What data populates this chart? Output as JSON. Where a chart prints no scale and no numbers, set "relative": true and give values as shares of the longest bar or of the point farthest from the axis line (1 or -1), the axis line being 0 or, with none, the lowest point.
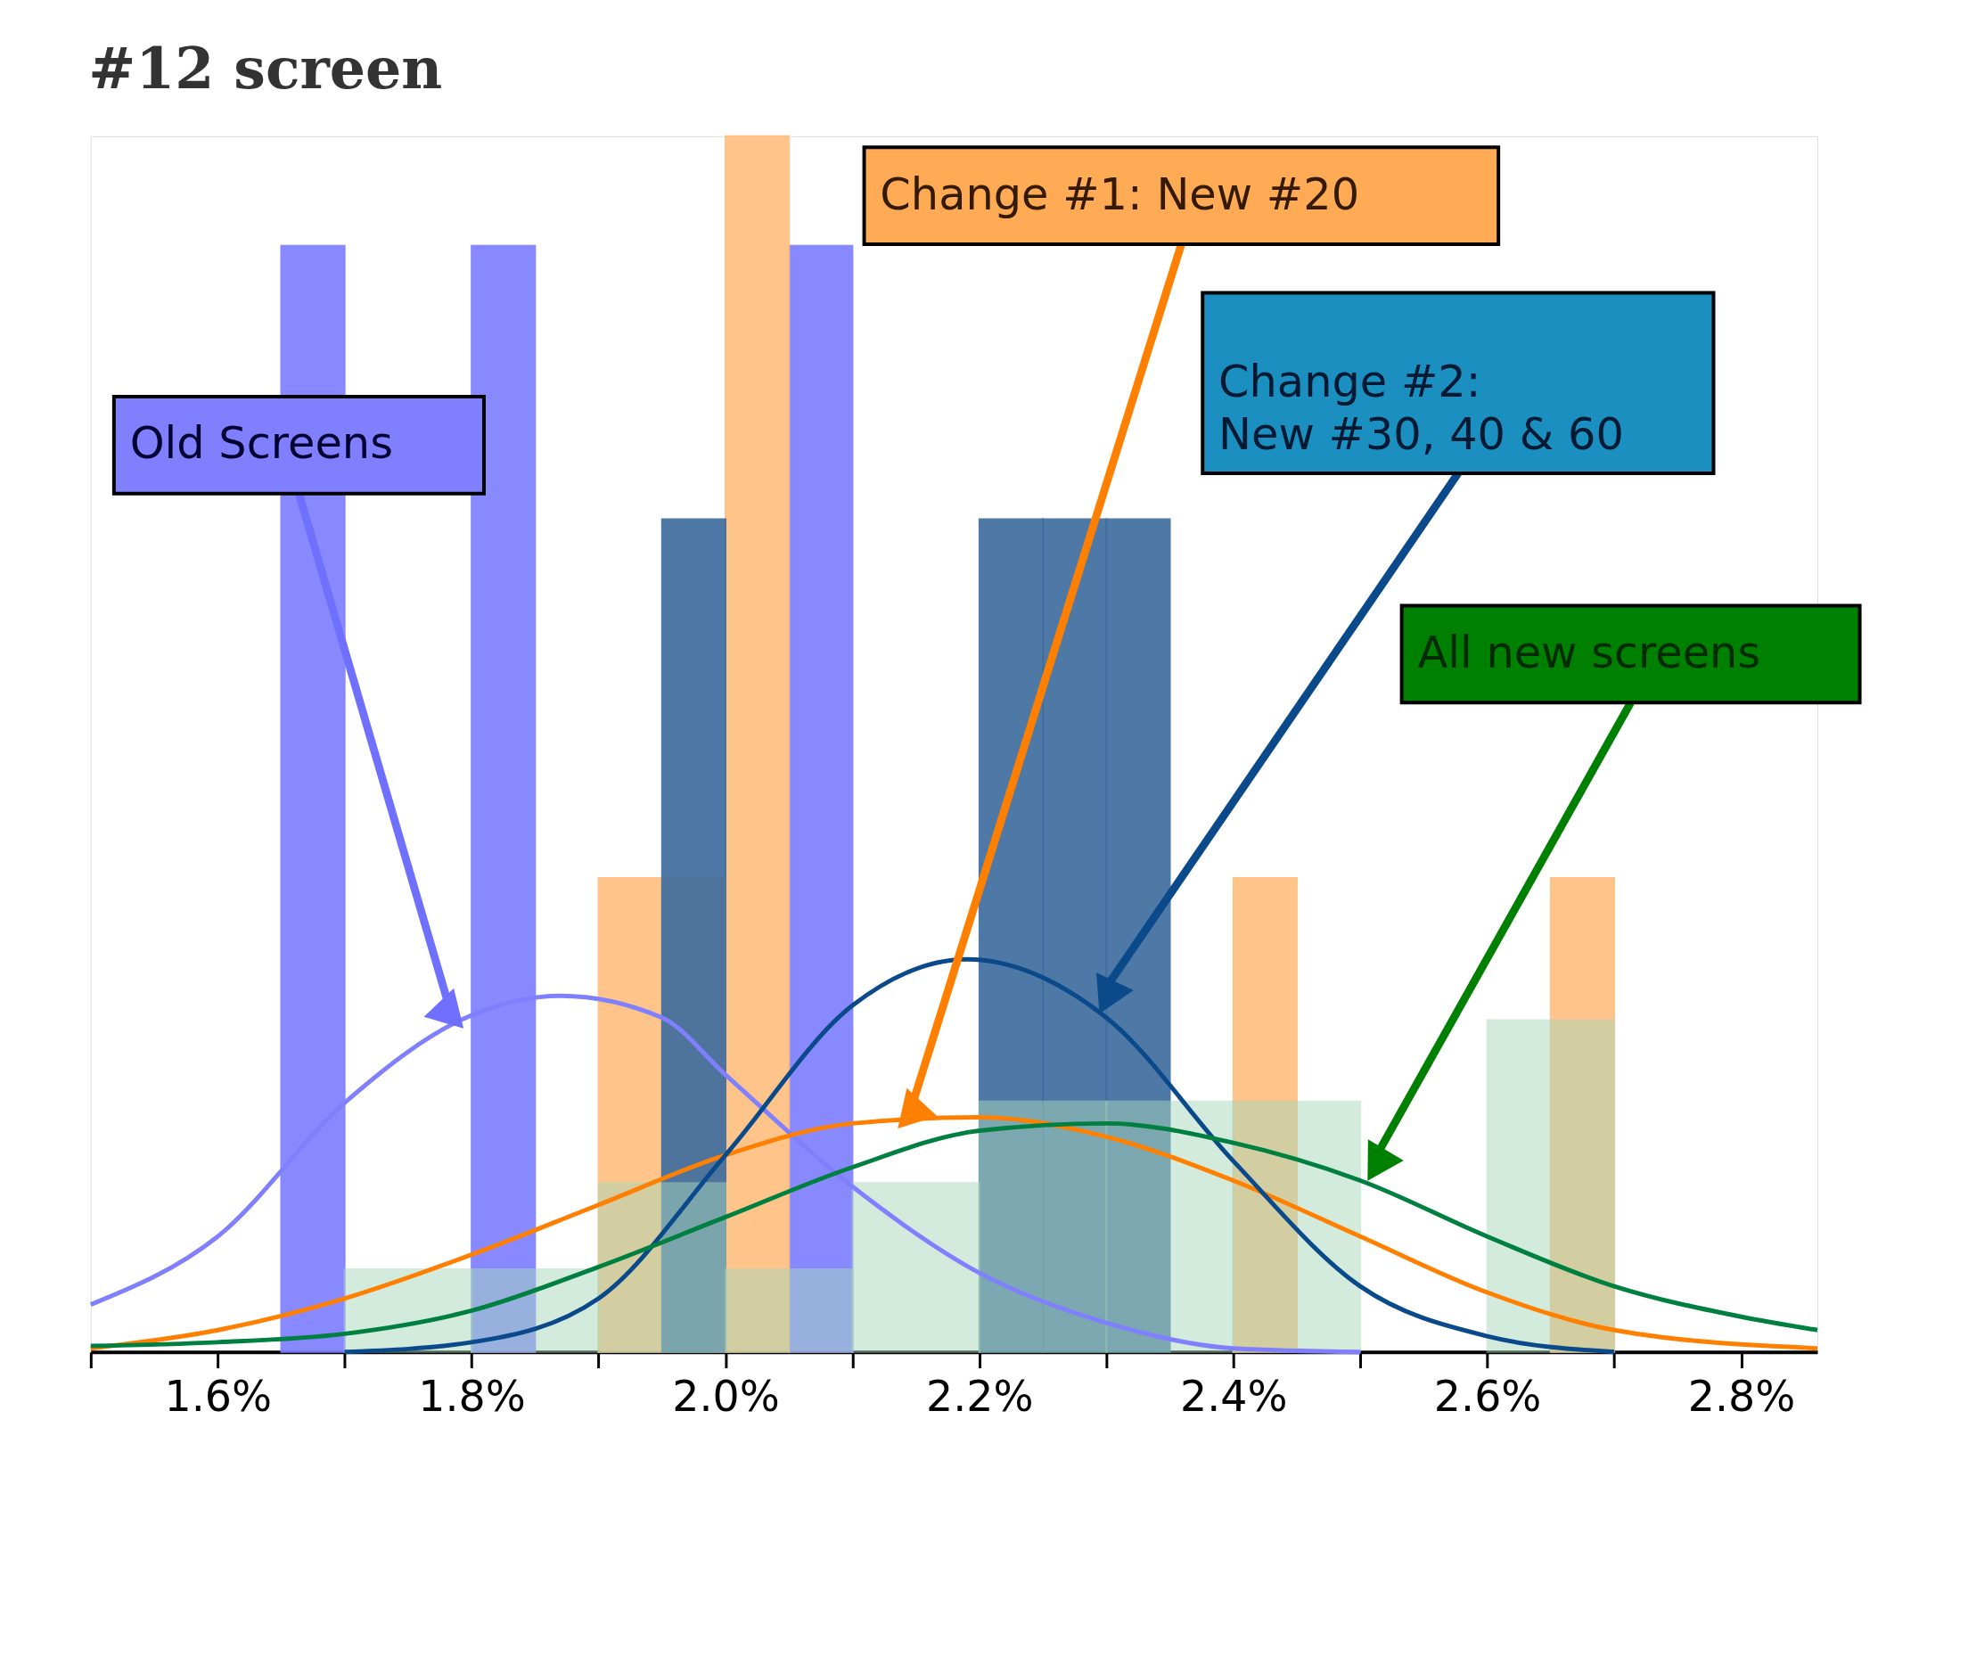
{
  "chart_data": {
    "type": "histogram",
    "title": "#12 screen",
    "relative": true,
    "grid": false,
    "marker": "none",
    "xlim": [
      1.5,
      2.86
    ],
    "xticks": [
      {
        "value": 1.6,
        "label": "1.6%"
      },
      {
        "value": 1.8,
        "label": "1.8%"
      },
      {
        "value": 2.0,
        "label": "2.0%"
      },
      {
        "value": 2.2,
        "label": "2.2%"
      },
      {
        "value": 2.4,
        "label": "2.4%"
      },
      {
        "value": 2.6,
        "label": "2.6%"
      },
      {
        "value": 2.8,
        "label": "2.8%"
      }
    ],
    "series": [
      {
        "color": "#8080ff",
        "bins": [
          1.65,
          1.7,
          1.8,
          1.85,
          2.05,
          2.1
        ],
        "values": [
          0.91,
          0,
          0.91,
          0,
          0.91
        ]
      },
      {
        "color": "#ffbf80",
        "bins": [
          1.9,
          2.0,
          2.05,
          2.4,
          2.45,
          2.65,
          2.7
        ],
        "values": [
          0.39,
          1,
          0,
          0.39,
          0,
          0.39
        ]
      },
      {
        "color": "#3f6d9f",
        "bins": [
          1.95,
          2.0,
          2.2,
          2.25,
          2.3,
          2.35
        ],
        "values": [
          0.685,
          0,
          0.685,
          0.685,
          0.685
        ]
      },
      {
        "color": "#a8d8bc",
        "bins": [
          1.7,
          1.8,
          1.9,
          2.0,
          2.1,
          2.2,
          2.3,
          2.4,
          2.5,
          2.6,
          2.7
        ],
        "values": [
          0.068,
          0.068,
          0.139,
          0.068,
          0.139,
          0.206,
          0.206,
          0.206,
          0,
          0.273
        ]
      },
      {
        "type": "line",
        "color": "#8080ff",
        "x": [
          1.5,
          1.6,
          1.7,
          1.8,
          1.87,
          1.95,
          2.0,
          2.1,
          2.2,
          2.3,
          2.4,
          2.5
        ],
        "values": [
          0.039,
          0.095,
          0.205,
          0.277,
          0.293,
          0.275,
          0.228,
          0.136,
          0.065,
          0.024,
          0.003,
          0
        ]
      },
      {
        "type": "line",
        "color": "#ff8000",
        "x": [
          1.5,
          1.6,
          1.7,
          1.8,
          1.9,
          2.0,
          2.1,
          2.2,
          2.3,
          2.4,
          2.5,
          2.6,
          2.7,
          2.86
        ],
        "values": [
          0.003,
          0.018,
          0.044,
          0.08,
          0.121,
          0.162,
          0.188,
          0.193,
          0.177,
          0.141,
          0.095,
          0.049,
          0.018,
          0.003
        ]
      },
      {
        "type": "line",
        "color": "#0a4a8a",
        "x": [
          1.7,
          1.8,
          1.9,
          2.0,
          2.1,
          2.19,
          2.3,
          2.4,
          2.5,
          2.6,
          2.7
        ],
        "values": [
          0,
          0.008,
          0.044,
          0.162,
          0.285,
          0.323,
          0.275,
          0.157,
          0.054,
          0.013,
          0
        ]
      },
      {
        "type": "line",
        "color": "#008040",
        "x": [
          1.5,
          1.6,
          1.7,
          1.8,
          1.9,
          2.0,
          2.1,
          2.2,
          2.3,
          2.4,
          2.5,
          2.6,
          2.7,
          2.8,
          2.86
        ],
        "values": [
          0.005,
          0.008,
          0.015,
          0.034,
          0.07,
          0.111,
          0.152,
          0.182,
          0.188,
          0.172,
          0.141,
          0.095,
          0.054,
          0.029,
          0.018
        ]
      }
    ],
    "annotations": [
      "Old Screens",
      "Change #1: New #20",
      "Change #2:\nNew #30, 40 & 60",
      "All new screens"
    ]
  }
}
